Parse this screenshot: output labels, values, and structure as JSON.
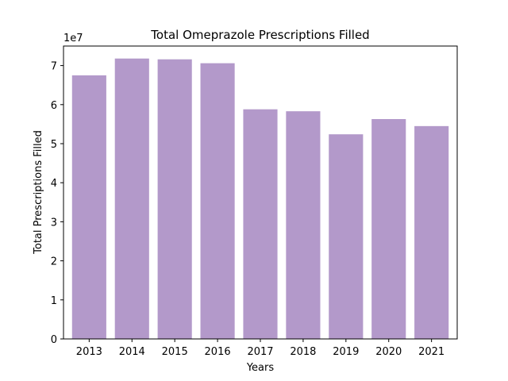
{
  "chart_data": {
    "type": "bar",
    "title": "Total Omeprazole Prescriptions Filled",
    "xlabel": "Years",
    "ylabel": "Total Prescriptions Filled",
    "y_offset_label": "1e7",
    "categories": [
      "2013",
      "2014",
      "2015",
      "2016",
      "2017",
      "2018",
      "2019",
      "2020",
      "2021"
    ],
    "values": [
      67500000,
      71800000,
      71600000,
      70600000,
      58800000,
      58300000,
      52400000,
      56300000,
      54500000
    ],
    "ylim": [
      0,
      75000000
    ],
    "y_ticks": [
      0,
      1,
      2,
      3,
      4,
      5,
      6,
      7
    ],
    "y_tick_labels": [
      "0",
      "1",
      "2",
      "3",
      "4",
      "5",
      "6",
      "7"
    ],
    "grid": false,
    "bar_color": "#b399ca"
  }
}
